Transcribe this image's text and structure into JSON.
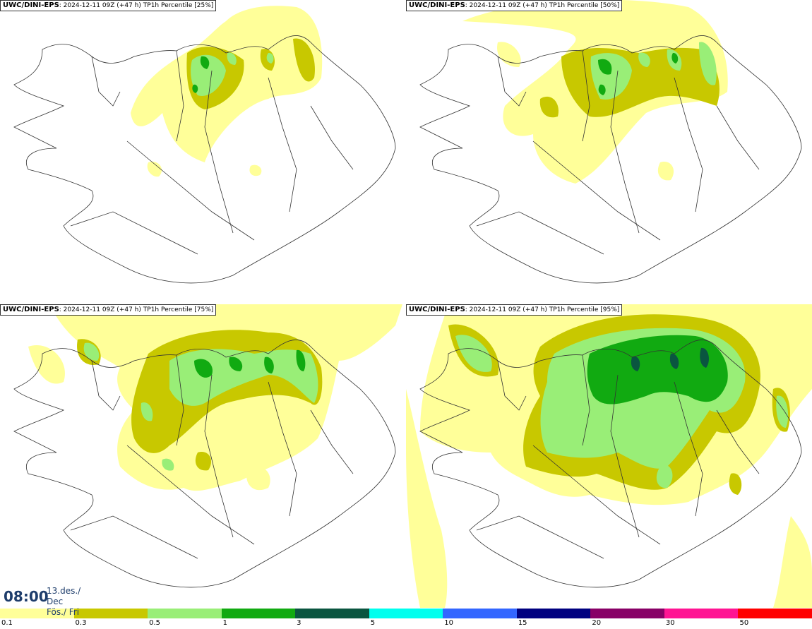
{
  "panels": [
    {
      "source": "UWC/DINI-EPS",
      "run": ": 2024-12-11 09Z (+47 h)",
      "field": "TP1h Percentile [25%]"
    },
    {
      "source": "UWC/DINI-EPS",
      "run": ": 2024-12-11 09Z (+47 h)",
      "field": "TP1h Percentile [50%]"
    },
    {
      "source": "UWC/DINI-EPS",
      "run": ": 2024-12-11 09Z (+47 h)",
      "field": "TP1h Percentile [75%]"
    },
    {
      "source": "UWC/DINI-EPS",
      "run": ": 2024-12-11 09Z (+47 h)",
      "field": "TP1h Percentile [95%]"
    }
  ],
  "valid_time": {
    "time": "08:00",
    "date": "13.des./ Dec",
    "day": "Fös./ Fri"
  },
  "colorscale": {
    "colors": [
      "#ffff99",
      "#c8c800",
      "#99ee77",
      "#11aa11",
      "#0a5540",
      "#00ffee",
      "#3366ff",
      "#000080",
      "#880066",
      "#ff1493",
      "#ff0000"
    ],
    "labels": [
      "0.1",
      "0.3",
      "0.5",
      "1",
      "3",
      "5",
      "10",
      "15",
      "20",
      "30",
      "50"
    ]
  }
}
